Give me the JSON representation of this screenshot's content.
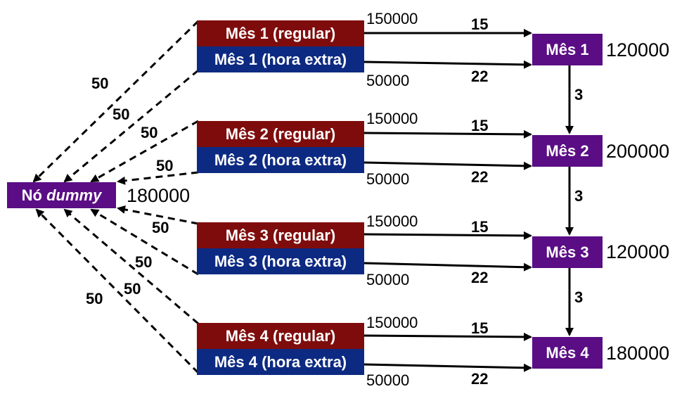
{
  "dummy_node": {
    "prefix": "Nó",
    "italic": "dummy",
    "supply": "180000"
  },
  "sources": [
    {
      "regular_label": "Mês 1 (regular)",
      "overtime_label": "Mês 1 (hora extra)",
      "regular_capacity": "150000",
      "overtime_capacity": "50000",
      "regular_cost": "15",
      "overtime_cost": "22",
      "dummy_cost_regular": "50",
      "dummy_cost_overtime": "50"
    },
    {
      "regular_label": "Mês 2 (regular)",
      "overtime_label": "Mês 2 (hora extra)",
      "regular_capacity": "150000",
      "overtime_capacity": "50000",
      "regular_cost": "15",
      "overtime_cost": "22",
      "dummy_cost_regular": "50",
      "dummy_cost_overtime": "50"
    },
    {
      "regular_label": "Mês 3 (regular)",
      "overtime_label": "Mês 3 (hora extra)",
      "regular_capacity": "150000",
      "overtime_capacity": "50000",
      "regular_cost": "15",
      "overtime_cost": "22",
      "dummy_cost_regular": "50",
      "dummy_cost_overtime": "50"
    },
    {
      "regular_label": "Mês 4 (regular)",
      "overtime_label": "Mês 4 (hora extra)",
      "regular_capacity": "150000",
      "overtime_capacity": "50000",
      "regular_cost": "15",
      "overtime_cost": "22",
      "dummy_cost_regular": "50",
      "dummy_cost_overtime": "50"
    }
  ],
  "months": [
    {
      "label": "Mês 1",
      "demand": "120000"
    },
    {
      "label": "Mês 2",
      "demand": "200000"
    },
    {
      "label": "Mês 3",
      "demand": "120000"
    },
    {
      "label": "Mês 4",
      "demand": "180000"
    }
  ],
  "storage_costs": [
    "3",
    "3",
    "3"
  ],
  "colors": {
    "regular": "#7f0c0c",
    "overtime": "#0d2a82",
    "month": "#5a0d84",
    "dummy": "#5a0d84"
  }
}
